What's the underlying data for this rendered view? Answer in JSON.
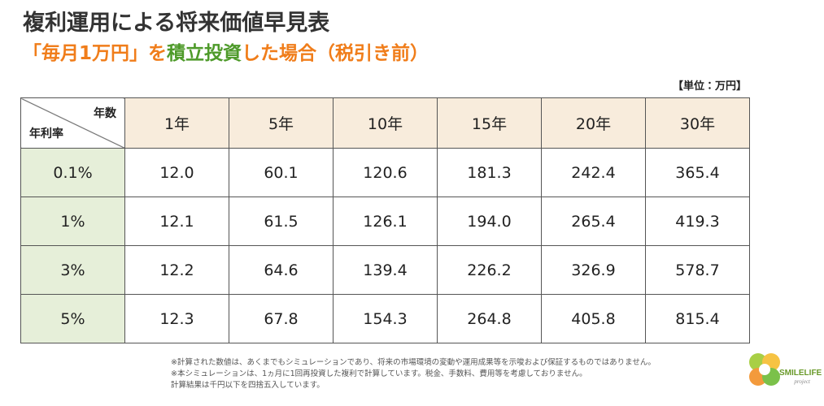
{
  "header": {
    "title": "複利運用による将来価値早見表",
    "subtitle": [
      {
        "text": "「毎月1万円」を",
        "color": "#f07d1a"
      },
      {
        "text": "積立投資",
        "color": "#4e9a2a"
      },
      {
        "text": "した場合（税引き前）",
        "color": "#f07d1a"
      }
    ]
  },
  "unit": "【単位：万円】",
  "table": {
    "corner_top": "年数",
    "corner_bottom": "年利率",
    "columns": [
      "1年",
      "5年",
      "10年",
      "15年",
      "20年",
      "30年"
    ],
    "rows": [
      {
        "rate": "0.1%",
        "cells": [
          "12.0",
          "60.1",
          "120.6",
          "181.3",
          "242.4",
          "365.4"
        ]
      },
      {
        "rate": "1%",
        "cells": [
          "12.1",
          "61.5",
          "126.1",
          "194.0",
          "265.4",
          "419.3"
        ]
      },
      {
        "rate": "3%",
        "cells": [
          "12.2",
          "64.6",
          "139.4",
          "226.2",
          "326.9",
          "578.7"
        ]
      },
      {
        "rate": "5%",
        "cells": [
          "12.3",
          "67.8",
          "154.3",
          "264.8",
          "405.8",
          "815.4"
        ]
      }
    ]
  },
  "notes": [
    "※計算された数値は、あくまでもシミュレーションであり、将来の市場環境の変動や運用成果等を示唆および保証するものではありません。",
    "※本シミュレーションは、1ヵ月に1回再投資した複利で計算しています。税金、手数料、費用等を考慮しておりません。",
    "計算結果は千円以下を四捨五入しています。"
  ],
  "logo": {
    "name": "SMILELIFE",
    "sub": "project"
  }
}
